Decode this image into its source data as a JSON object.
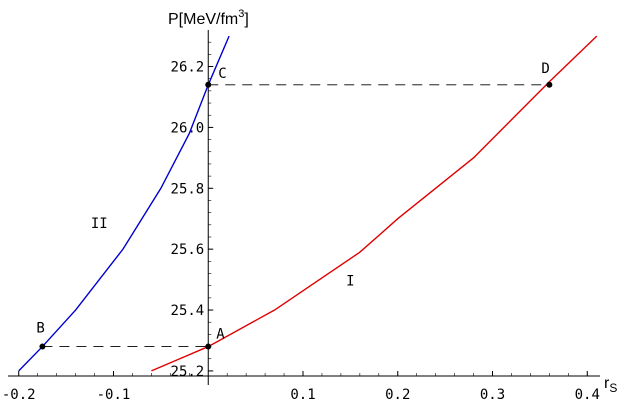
{
  "chart_data": {
    "type": "line",
    "xlabel": "r",
    "xlabel_sub": "S",
    "ylabel": "P[MeV/fm",
    "ylabel_sup": "3",
    "ylabel_end": "]",
    "xlim": [
      -0.205,
      0.405
    ],
    "ylim": [
      25.18,
      26.32
    ],
    "x_ticks": [
      -0.2,
      -0.1,
      0.1,
      0.2,
      0.3,
      0.4
    ],
    "x_tick_labels": [
      "-0.2",
      "-0.1",
      "0.1",
      "0.2",
      "0.3",
      "0.4"
    ],
    "y_ticks": [
      25.2,
      25.4,
      25.6,
      25.8,
      26.0,
      26.2
    ],
    "y_tick_labels": [
      "25.2",
      "25.4",
      "25.6",
      "25.8",
      "26.0",
      "26.2"
    ],
    "grid": false,
    "series": [
      {
        "name": "I",
        "color": "#e00000",
        "points": [
          [
            -0.06,
            25.2
          ],
          [
            -0.03,
            25.24
          ],
          [
            0.0,
            25.28
          ],
          [
            0.07,
            25.4
          ],
          [
            0.16,
            25.59
          ],
          [
            0.2,
            25.7
          ],
          [
            0.28,
            25.9
          ],
          [
            0.36,
            26.15
          ],
          [
            0.41,
            26.3
          ]
        ]
      },
      {
        "name": "II",
        "color": "#0000d0",
        "points": [
          [
            -0.2,
            25.2
          ],
          [
            -0.175,
            25.28
          ],
          [
            -0.14,
            25.4
          ],
          [
            -0.09,
            25.6
          ],
          [
            -0.05,
            25.8
          ],
          [
            -0.02,
            25.98
          ],
          [
            0.0,
            26.14
          ],
          [
            0.022,
            26.3
          ]
        ]
      }
    ],
    "points": [
      {
        "label": "A",
        "x": 0.0,
        "y": 25.28
      },
      {
        "label": "B",
        "x": -0.175,
        "y": 25.28
      },
      {
        "label": "C",
        "x": 0.0,
        "y": 26.14
      },
      {
        "label": "D",
        "x": 0.36,
        "y": 26.14
      }
    ],
    "dashed_lines": [
      {
        "from": "B",
        "to": "A"
      },
      {
        "from": "C",
        "to": "D"
      }
    ],
    "curve_labels": [
      {
        "text": "I",
        "x": 0.15,
        "y": 25.48
      },
      {
        "text": "II",
        "x": -0.115,
        "y": 25.67
      }
    ]
  }
}
